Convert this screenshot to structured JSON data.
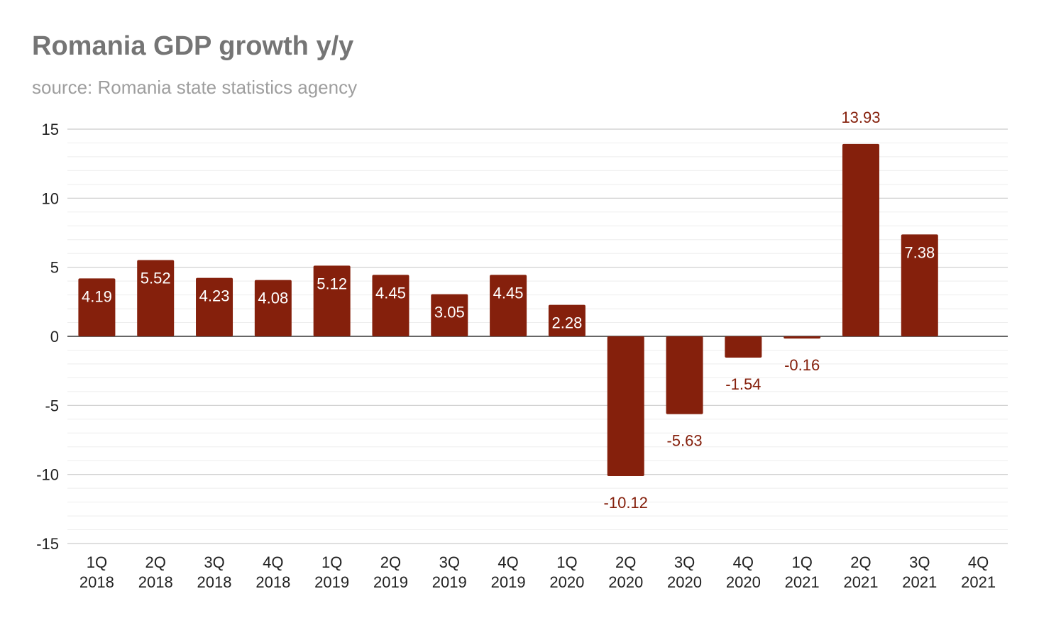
{
  "title": "Romania GDP growth y/y",
  "subtitle": "source: Romania state statistics agency",
  "chart_data": {
    "type": "bar",
    "title": "Romania GDP growth y/y",
    "subtitle": "source: Romania state statistics agency",
    "categories": [
      [
        "1Q",
        "2018"
      ],
      [
        "2Q",
        "2018"
      ],
      [
        "3Q",
        "2018"
      ],
      [
        "4Q",
        "2018"
      ],
      [
        "1Q",
        "2019"
      ],
      [
        "2Q",
        "2019"
      ],
      [
        "3Q",
        "2019"
      ],
      [
        "4Q",
        "2019"
      ],
      [
        "1Q",
        "2020"
      ],
      [
        "2Q",
        "2020"
      ],
      [
        "3Q",
        "2020"
      ],
      [
        "4Q",
        "2020"
      ],
      [
        "1Q",
        "2021"
      ],
      [
        "2Q",
        "2021"
      ],
      [
        "3Q",
        "2021"
      ],
      [
        "4Q",
        "2021"
      ]
    ],
    "values": [
      4.19,
      5.52,
      4.23,
      4.08,
      5.12,
      4.45,
      3.05,
      4.45,
      2.28,
      -10.12,
      -5.63,
      -1.54,
      -0.16,
      13.93,
      7.38,
      null
    ],
    "data_labels": [
      "4.19",
      "5.52",
      "4.23",
      "4.08",
      "5.12",
      "4.45",
      "3.05",
      "4.45",
      "2.28",
      "-10.12",
      "-5.63",
      "-1.54",
      "-0.16",
      "13.93",
      "7.38",
      ""
    ],
    "yticks": [
      15,
      10,
      5,
      0,
      -5,
      -10,
      -15
    ],
    "ytick_labels": [
      "15",
      "10",
      "5",
      "0",
      "-5",
      "-10",
      "-15"
    ],
    "ylim": [
      -15,
      15
    ],
    "minor_grid_step": 1,
    "grid": true,
    "legend": "none",
    "xlabel": "",
    "ylabel": "",
    "colors": {
      "bar": "#85200c",
      "label_inside": "#ffffff",
      "label_outside": "#85200c",
      "major_grid": "#cccccc",
      "minor_grid": "#eeeeee",
      "zero_line": "#333333"
    }
  }
}
